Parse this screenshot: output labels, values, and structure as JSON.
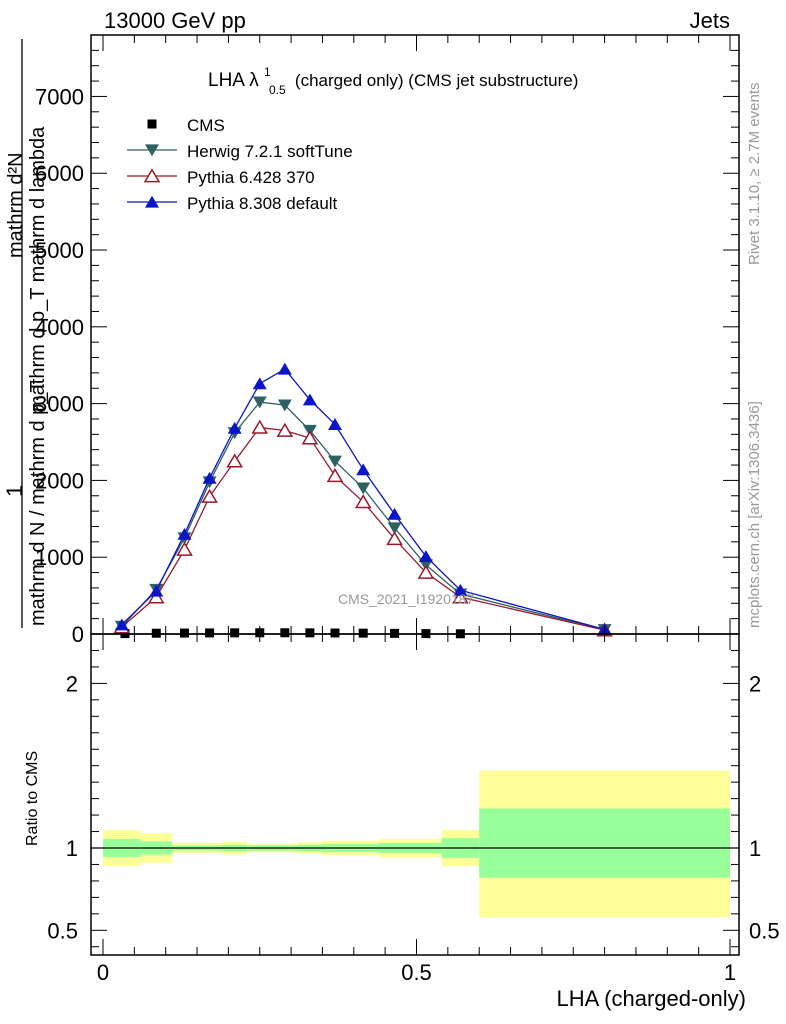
{
  "header": {
    "left": "13000 GeV pp",
    "right": "Jets"
  },
  "side": {
    "top": "Rivet 3.1.10, ≥ 2.7M events",
    "bottom": "mcplots.cern.ch [arXiv:1306.3436]"
  },
  "watermark": "CMS_2021_I1920187",
  "chart_data": [
    {
      "type": "line",
      "title": "LHA λ",
      "title_sup": "1",
      "title_sub": "0.5",
      "title_rest": "(charged only) (CMS jet substructure)",
      "ylabel_num": "mathrm d²N",
      "ylabel_den": "mathrm d p_T mathrm d lambda",
      "ylabel_prefix": "1",
      "ylabel_prefix_den": "mathrm d N / mathrm d p_T",
      "xlim": [
        0,
        1
      ],
      "ylim": [
        0,
        7800
      ],
      "yticks": [
        0,
        1000,
        2000,
        3000,
        4000,
        5000,
        6000,
        7000
      ],
      "legend_position": "top-left",
      "series": [
        {
          "name": "CMS",
          "marker": "square",
          "color": "#000000",
          "x": [
            0.035,
            0.085,
            0.13,
            0.17,
            0.21,
            0.25,
            0.29,
            0.33,
            0.37,
            0.415,
            0.465,
            0.515,
            0.57
          ],
          "y": [
            5,
            10,
            12,
            14,
            15,
            16,
            16,
            15,
            13,
            11,
            8,
            5,
            3
          ]
        },
        {
          "name": "Herwig 7.2.1 softTune",
          "marker": "triangle-down",
          "color": "#2e6262",
          "x": [
            0.03,
            0.085,
            0.13,
            0.17,
            0.21,
            0.25,
            0.29,
            0.33,
            0.37,
            0.415,
            0.465,
            0.515,
            0.57,
            0.8
          ],
          "y": [
            100,
            580,
            1250,
            1980,
            2620,
            3020,
            2980,
            2650,
            2250,
            1900,
            1380,
            900,
            520,
            55
          ]
        },
        {
          "name": "Pythia 6.428 370",
          "marker": "triangle-open",
          "color": "#9a1a2a",
          "x": [
            0.03,
            0.085,
            0.13,
            0.17,
            0.21,
            0.25,
            0.29,
            0.33,
            0.37,
            0.415,
            0.465,
            0.515,
            0.57,
            0.8
          ],
          "y": [
            90,
            480,
            1100,
            1790,
            2250,
            2690,
            2650,
            2550,
            2060,
            1720,
            1240,
            800,
            480,
            50
          ]
        },
        {
          "name": "Pythia 8.308 default",
          "marker": "triangle",
          "color": "#0a14c8",
          "x": [
            0.03,
            0.085,
            0.13,
            0.17,
            0.21,
            0.25,
            0.29,
            0.33,
            0.37,
            0.415,
            0.465,
            0.515,
            0.57,
            0.8
          ],
          "y": [
            120,
            560,
            1300,
            2030,
            2680,
            3260,
            3450,
            3050,
            2730,
            2140,
            1560,
            1010,
            570,
            60
          ]
        }
      ]
    },
    {
      "type": "area",
      "ylabel": "Ratio to CMS",
      "xlabel": "LHA (charged-only)",
      "xlim": [
        0,
        1
      ],
      "ylim": [
        0.35,
        2.3
      ],
      "yticks": [
        0.5,
        1,
        2
      ],
      "xticks": [
        0,
        0.5,
        1
      ],
      "bands": [
        {
          "x": [
            0.0,
            0.06
          ],
          "inner": [
            0.945,
            1.055
          ],
          "outer": [
            0.89,
            1.11
          ]
        },
        {
          "x": [
            0.06,
            0.11
          ],
          "inner": [
            0.96,
            1.04
          ],
          "outer": [
            0.91,
            1.09
          ]
        },
        {
          "x": [
            0.11,
            0.19
          ],
          "inner": [
            0.985,
            1.015
          ],
          "outer": [
            0.97,
            1.03
          ]
        },
        {
          "x": [
            0.19,
            0.23
          ],
          "inner": [
            0.98,
            1.02
          ],
          "outer": [
            0.96,
            1.04
          ]
        },
        {
          "x": [
            0.23,
            0.31
          ],
          "inner": [
            0.985,
            1.015
          ],
          "outer": [
            0.975,
            1.025
          ]
        },
        {
          "x": [
            0.31,
            0.35
          ],
          "inner": [
            0.98,
            1.02
          ],
          "outer": [
            0.965,
            1.035
          ]
        },
        {
          "x": [
            0.35,
            0.44
          ],
          "inner": [
            0.975,
            1.025
          ],
          "outer": [
            0.955,
            1.045
          ]
        },
        {
          "x": [
            0.44,
            0.54
          ],
          "inner": [
            0.97,
            1.03
          ],
          "outer": [
            0.945,
            1.055
          ]
        },
        {
          "x": [
            0.54,
            0.6
          ],
          "inner": [
            0.94,
            1.06
          ],
          "outer": [
            0.89,
            1.11
          ]
        },
        {
          "x": [
            0.6,
            1.0
          ],
          "inner": [
            0.82,
            1.24
          ],
          "outer": [
            0.58,
            1.47
          ]
        }
      ]
    }
  ]
}
